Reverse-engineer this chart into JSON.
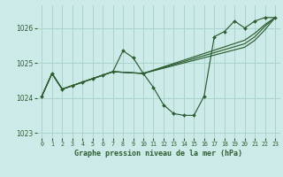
{
  "background_color": "#cceae8",
  "grid_color": "#aad4cc",
  "line_color": "#2d5e30",
  "title": "Graphe pression niveau de la mer (hPa)",
  "xlim": [
    -0.5,
    23.5
  ],
  "ylim": [
    1022.85,
    1026.65
  ],
  "yticks": [
    1023,
    1024,
    1025,
    1026
  ],
  "xticks": [
    0,
    1,
    2,
    3,
    4,
    5,
    6,
    7,
    8,
    9,
    10,
    11,
    12,
    13,
    14,
    15,
    16,
    17,
    18,
    19,
    20,
    21,
    22,
    23
  ],
  "s1_x": [
    0,
    1,
    2,
    3,
    4,
    5,
    6,
    7,
    8,
    9,
    10,
    11,
    12,
    13,
    14,
    15,
    16,
    17,
    18,
    19,
    20,
    21,
    22,
    23
  ],
  "s1_y": [
    1024.05,
    1024.7,
    1024.25,
    1024.35,
    1024.45,
    1024.55,
    1024.65,
    1024.75,
    1025.35,
    1025.15,
    1024.7,
    1024.3,
    1023.8,
    1023.55,
    1023.5,
    1023.5,
    1024.05,
    1025.75,
    1025.9,
    1026.2,
    1026.0,
    1026.2,
    1026.3,
    1026.3
  ],
  "s2_x": [
    0,
    1,
    2,
    3,
    4,
    5,
    6,
    7,
    10,
    20,
    21,
    22,
    23
  ],
  "s2_y": [
    1024.05,
    1024.7,
    1024.25,
    1024.35,
    1024.45,
    1024.55,
    1024.65,
    1024.75,
    1024.7,
    1025.65,
    1025.85,
    1026.1,
    1026.3
  ],
  "s3_x": [
    0,
    1,
    2,
    3,
    4,
    5,
    6,
    7,
    10,
    20,
    21,
    22,
    23
  ],
  "s3_y": [
    1024.05,
    1024.7,
    1024.25,
    1024.35,
    1024.45,
    1024.55,
    1024.65,
    1024.75,
    1024.7,
    1025.55,
    1025.75,
    1026.05,
    1026.3
  ],
  "s4_x": [
    0,
    1,
    2,
    3,
    4,
    5,
    6,
    7,
    10,
    20,
    21,
    22,
    23
  ],
  "s4_y": [
    1024.05,
    1024.7,
    1024.25,
    1024.35,
    1024.45,
    1024.55,
    1024.65,
    1024.75,
    1024.7,
    1025.45,
    1025.65,
    1025.95,
    1026.3
  ]
}
